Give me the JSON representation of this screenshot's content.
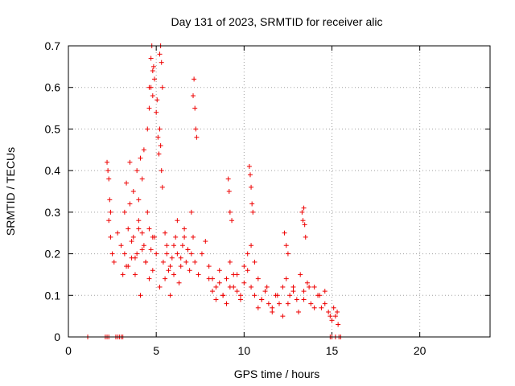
{
  "chart_data": {
    "type": "scatter",
    "title": "Day 131 of 2023, SRMTID for receiver alic",
    "xlabel": "GPS time / hours",
    "ylabel": "SRMTID / TECUs",
    "xlim": [
      0,
      24
    ],
    "ylim": [
      0,
      0.7
    ],
    "grid": true,
    "marker": "+",
    "color": "#ee0000",
    "x_ticks": [
      0,
      5,
      10,
      15,
      20
    ],
    "x_tick_labels": [
      "0",
      "5",
      "10",
      "15",
      "20"
    ],
    "y_ticks": [
      0,
      0.1,
      0.2,
      0.3,
      0.4,
      0.5,
      0.6,
      0.7
    ],
    "y_tick_labels": [
      "0",
      "0.1",
      "0.2",
      "0.3",
      "0.4",
      "0.5",
      "0.6",
      "0.7"
    ],
    "series": [
      {
        "name": "SRMTID",
        "x": [
          1.1,
          2.1,
          2.2,
          2.3,
          2.7,
          2.8,
          2.9,
          3.0,
          3.1,
          14.9,
          15.0,
          15.2,
          15.4,
          15.5,
          2.2,
          2.25,
          2.3,
          2.35,
          2.4,
          2.3,
          2.4,
          2.5,
          2.6,
          2.8,
          3.0,
          3.2,
          3.3,
          3.4,
          3.5,
          3.6,
          3.7,
          3.8,
          3.9,
          4.0,
          4.1,
          4.2,
          4.3,
          4.4,
          4.5,
          4.6,
          4.7,
          4.8,
          4.9,
          3.3,
          3.5,
          3.7,
          3.9,
          4.0,
          4.1,
          4.2,
          4.3,
          4.5,
          4.6,
          4.7,
          4.8,
          4.85,
          4.9,
          5.0,
          5.05,
          5.1,
          5.15,
          5.2,
          5.25,
          5.3,
          5.35,
          3.1,
          3.2,
          3.4,
          3.6,
          3.8,
          4.0,
          4.2,
          4.4,
          4.6,
          4.8,
          5.0,
          5.2,
          5.4,
          5.5,
          5.6,
          5.7,
          5.8,
          5.9,
          6.0,
          6.1,
          6.2,
          6.3,
          6.4,
          6.5,
          6.6,
          6.7,
          6.8,
          6.9,
          7.0,
          7.1,
          4.6,
          4.7,
          4.75,
          4.8,
          5.2,
          5.25,
          5.3,
          5.35,
          7.1,
          7.15,
          7.2,
          7.25,
          7.3,
          5.5,
          5.6,
          5.8,
          6.0,
          6.2,
          6.4,
          6.6,
          6.8,
          7.0,
          7.2,
          7.4,
          7.6,
          7.8,
          8.0,
          8.2,
          8.4,
          8.6,
          8.8,
          9.0,
          9.2,
          9.4,
          9.6,
          9.8,
          10.0,
          10.2,
          10.4,
          10.6,
          10.8,
          9.1,
          9.15,
          9.2,
          9.3,
          10.3,
          10.35,
          10.4,
          10.45,
          10.5,
          8.0,
          8.2,
          8.4,
          8.6,
          8.8,
          9.0,
          9.2,
          9.4,
          9.6,
          9.8,
          10.0,
          10.2,
          10.4,
          10.6,
          10.8,
          11.0,
          11.2,
          11.4,
          11.6,
          11.8,
          12.0,
          12.2,
          12.4,
          12.6,
          12.8,
          13.0,
          13.2,
          13.4,
          13.6,
          13.8,
          14.0,
          14.2,
          14.4,
          14.6,
          12.3,
          12.4,
          12.5,
          13.3,
          13.35,
          13.4,
          13.45,
          13.5,
          11.0,
          11.3,
          11.6,
          11.9,
          12.2,
          12.5,
          12.8,
          13.1,
          13.4,
          13.7,
          14.0,
          14.3,
          14.6,
          14.8,
          14.9,
          15.0,
          15.1,
          15.2,
          15.3,
          15.35
        ],
        "y": [
          0,
          0,
          0,
          0,
          0,
          0,
          0,
          0,
          0,
          0,
          0,
          0,
          0,
          0,
          0.42,
          0.4,
          0.38,
          0.33,
          0.3,
          0.28,
          0.24,
          0.2,
          0.18,
          0.25,
          0.22,
          0.3,
          0.17,
          0.26,
          0.32,
          0.19,
          0.24,
          0.15,
          0.2,
          0.28,
          0.1,
          0.25,
          0.22,
          0.18,
          0.3,
          0.26,
          0.21,
          0.16,
          0.24,
          0.37,
          0.42,
          0.35,
          0.4,
          0.33,
          0.43,
          0.38,
          0.45,
          0.5,
          0.55,
          0.6,
          0.58,
          0.65,
          0.62,
          0.54,
          0.57,
          0.48,
          0.44,
          0.5,
          0.46,
          0.4,
          0.36,
          0.15,
          0.2,
          0.17,
          0.23,
          0.19,
          0.26,
          0.21,
          0.18,
          0.14,
          0.24,
          0.2,
          0.12,
          0.18,
          0.14,
          0.22,
          0.16,
          0.1,
          0.19,
          0.15,
          0.24,
          0.2,
          0.13,
          0.17,
          0.22,
          0.26,
          0.18,
          0.21,
          0.16,
          0.2,
          0.24,
          0.6,
          0.67,
          0.7,
          0.64,
          0.68,
          0.7,
          0.66,
          0.6,
          0.58,
          0.62,
          0.55,
          0.5,
          0.48,
          0.25,
          0.2,
          0.17,
          0.22,
          0.28,
          0.19,
          0.24,
          0.21,
          0.3,
          0.18,
          0.15,
          0.2,
          0.23,
          0.17,
          0.14,
          0.12,
          0.16,
          0.1,
          0.14,
          0.18,
          0.12,
          0.15,
          0.1,
          0.17,
          0.2,
          0.22,
          0.18,
          0.14,
          0.38,
          0.35,
          0.3,
          0.28,
          0.41,
          0.39,
          0.36,
          0.32,
          0.3,
          0.14,
          0.11,
          0.09,
          0.13,
          0.1,
          0.08,
          0.12,
          0.15,
          0.11,
          0.09,
          0.13,
          0.16,
          0.12,
          0.1,
          0.07,
          0.09,
          0.11,
          0.08,
          0.06,
          0.1,
          0.08,
          0.12,
          0.14,
          0.1,
          0.12,
          0.09,
          0.15,
          0.11,
          0.13,
          0.08,
          0.12,
          0.1,
          0.07,
          0.11,
          0.25,
          0.22,
          0.2,
          0.3,
          0.28,
          0.31,
          0.27,
          0.24,
          0.09,
          0.12,
          0.07,
          0.1,
          0.05,
          0.08,
          0.11,
          0.06,
          0.09,
          0.12,
          0.07,
          0.1,
          0.08,
          0.06,
          0.05,
          0.04,
          0.07,
          0.05,
          0.06,
          0.03
        ]
      }
    ]
  }
}
